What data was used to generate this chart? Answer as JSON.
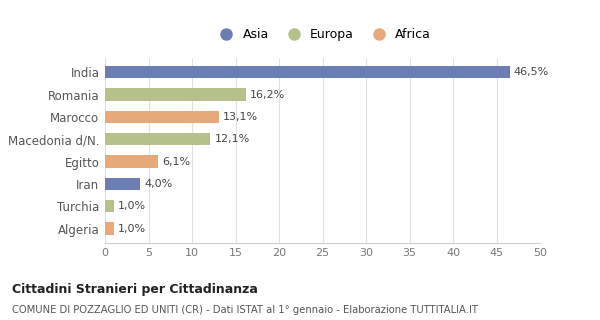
{
  "categories": [
    "India",
    "Romania",
    "Marocco",
    "Macedonia d/N.",
    "Egitto",
    "Iran",
    "Turchia",
    "Algeria"
  ],
  "values": [
    46.5,
    16.2,
    13.1,
    12.1,
    6.1,
    4.0,
    1.0,
    1.0
  ],
  "labels": [
    "46,5%",
    "16,2%",
    "13,1%",
    "12,1%",
    "6,1%",
    "4,0%",
    "1,0%",
    "1,0%"
  ],
  "colors": [
    "#6b7db3",
    "#b5c08b",
    "#e8a97a",
    "#b5c08b",
    "#e8a97a",
    "#6b7db3",
    "#b5c08b",
    "#e8a97a"
  ],
  "legend_labels": [
    "Asia",
    "Europa",
    "Africa"
  ],
  "legend_colors": [
    "#6b7db3",
    "#b5c08b",
    "#e8a97a"
  ],
  "xlim": [
    0,
    50
  ],
  "xticks": [
    0,
    5,
    10,
    15,
    20,
    25,
    30,
    35,
    40,
    45,
    50
  ],
  "title_main": "Cittadini Stranieri per Cittadinanza",
  "title_sub": "COMUNE DI POZZAGLIO ED UNITI (CR) - Dati ISTAT al 1° gennaio - Elaborazione TUTTITALIA.IT",
  "background_color": "#ffffff",
  "bar_height": 0.55,
  "label_fontsize": 8,
  "ytick_fontsize": 8.5,
  "xtick_fontsize": 8
}
